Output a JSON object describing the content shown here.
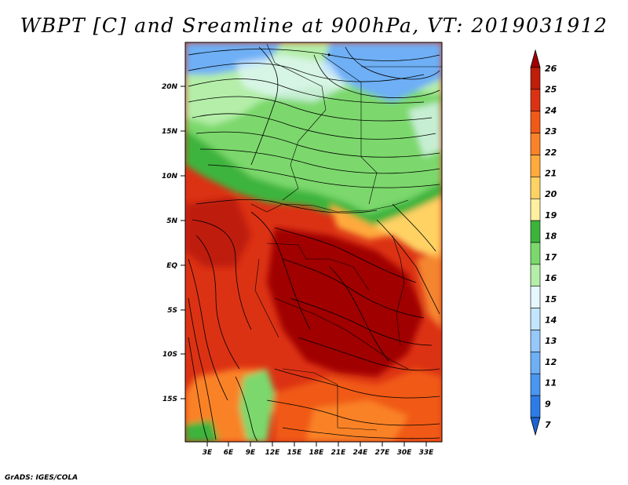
{
  "title": "WBPT [C] and Sreamline at 900hPa, VT: 2019031912",
  "credit": "GrADS: IGES/COLA",
  "map": {
    "lat_ticks": [
      "20N",
      "15N",
      "10N",
      "5N",
      "EQ",
      "5S",
      "10S",
      "15S"
    ],
    "lon_ticks": [
      "3E",
      "6E",
      "9E",
      "12E",
      "15E",
      "18E",
      "21E",
      "24E",
      "27E",
      "30E",
      "33E"
    ]
  },
  "colorbar": {
    "labels": [
      "7",
      "9",
      "11",
      "12",
      "13",
      "14",
      "15",
      "16",
      "17",
      "18",
      "19",
      "20",
      "21",
      "22",
      "23",
      "24",
      "25",
      "26"
    ],
    "colors": [
      "#1e64d2",
      "#2d7be6",
      "#4b96f0",
      "#6eaff5",
      "#96c8fa",
      "#c3e6ff",
      "#e6f8ff",
      "#b4eea8",
      "#7cd86c",
      "#3cb43c",
      "#fff0a0",
      "#ffd264",
      "#ffaa3c",
      "#fa8228",
      "#f05a19",
      "#dc3214",
      "#be1e0a",
      "#a00000"
    ]
  }
}
